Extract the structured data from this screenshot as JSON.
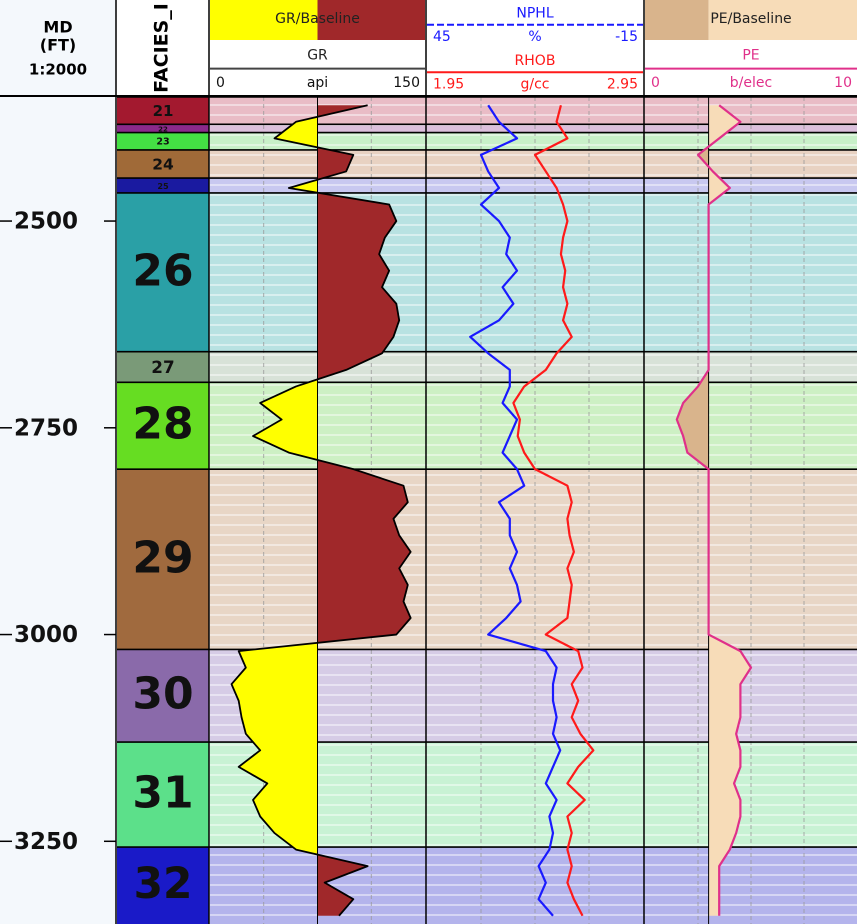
{
  "chart_data": {
    "type": "well_log",
    "depth_header": {
      "title": "MD",
      "unit": "(FT)",
      "scale": "1:2000"
    },
    "ylim": [
      2350,
      3350
    ],
    "yticks": [
      2500,
      2750,
      3000,
      3250
    ],
    "grid": true,
    "facies": {
      "title": "FACIES_I",
      "zones": [
        {
          "label": "21",
          "top": 2350,
          "base": 2383,
          "color": "#a3192f",
          "fill": "#e9bcc6"
        },
        {
          "label": "22",
          "top": 2383,
          "base": 2393,
          "color": "#8b2a8b",
          "fill": "#dcc0dc"
        },
        {
          "label": "23",
          "top": 2393,
          "base": 2414,
          "color": "#44e044",
          "fill": "#c8f0c8"
        },
        {
          "label": "24",
          "top": 2414,
          "base": 2448,
          "color": "#a06a38",
          "fill": "#e8d2c2"
        },
        {
          "label": "25",
          "top": 2448,
          "base": 2466,
          "color": "#1a1aa0",
          "fill": "#c8c8f0"
        },
        {
          "label": "26",
          "top": 2466,
          "base": 2658,
          "color": "#2aa0a6",
          "fill": "#b8e2e2"
        },
        {
          "label": "27",
          "top": 2658,
          "base": 2695,
          "color": "#7a9a78",
          "fill": "#d8e2d8"
        },
        {
          "label": "28",
          "top": 2695,
          "base": 2800,
          "color": "#66dd22",
          "fill": "#cdf0c4"
        },
        {
          "label": "29",
          "top": 2800,
          "base": 3018,
          "color": "#a06a3e",
          "fill": "#e8d6c6"
        },
        {
          "label": "30",
          "top": 3018,
          "base": 3130,
          "color": "#8a6aaa",
          "fill": "#d6cce6"
        },
        {
          "label": "31",
          "top": 3130,
          "base": 3257,
          "color": "#5ce08a",
          "fill": "#c8f2d4"
        },
        {
          "label": "32",
          "top": 3257,
          "base": 3350,
          "color": "#1a1ac8",
          "fill": "#b4b4ec"
        }
      ]
    },
    "x": [
      2360,
      2380,
      2400,
      2420,
      2440,
      2460,
      2480,
      2500,
      2520,
      2540,
      2560,
      2580,
      2600,
      2620,
      2640,
      2660,
      2680,
      2700,
      2720,
      2740,
      2760,
      2780,
      2800,
      2820,
      2840,
      2860,
      2880,
      2900,
      2920,
      2940,
      2960,
      2980,
      3000,
      3020,
      3040,
      3060,
      3080,
      3100,
      3120,
      3140,
      3160,
      3180,
      3200,
      3220,
      3240,
      3260,
      3280,
      3300,
      3320,
      3340
    ],
    "tracks": [
      {
        "title": "GR/Baseline",
        "baseline": 75,
        "fill_low": "#ffff00",
        "fill_high": "#a0282a",
        "curves": [
          {
            "name": "GR",
            "unit": "api",
            "xlim": [
              0,
              150
            ],
            "color": "#000000",
            "values": [
              110,
              60,
              45,
              100,
              95,
              55,
              125,
              130,
              122,
              118,
              125,
              120,
              130,
              132,
              128,
              120,
              95,
              60,
              35,
              50,
              30,
              55,
              100,
              135,
              138,
              128,
              132,
              140,
              132,
              138,
              135,
              140,
              130,
              20,
              25,
              15,
              20,
              22,
              25,
              35,
              20,
              40,
              30,
              35,
              45,
              60,
              110,
              80,
              100,
              90
            ]
          }
        ]
      },
      {
        "curves": [
          {
            "name": "NPHL",
            "unit": "%",
            "xlim": [
              45,
              -15
            ],
            "color": "#1a1aff",
            "dash": true,
            "values": [
              28,
              25,
              20,
              30,
              28,
              25,
              30,
              25,
              22,
              23,
              20,
              24,
              21,
              25,
              33,
              28,
              22,
              22,
              24,
              20,
              22,
              24,
              20,
              18,
              25,
              22,
              22,
              20,
              22,
              20,
              19,
              23,
              28,
              12,
              9,
              10,
              10,
              9,
              10,
              8,
              10,
              12,
              9,
              11,
              10,
              11,
              14,
              12,
              14,
              10
            ]
          },
          {
            "name": "RHOB",
            "unit": "g/cc",
            "xlim": [
              1.95,
              2.95
            ],
            "color": "#ff1a1a",
            "values": [
              2.57,
              2.55,
              2.6,
              2.45,
              2.5,
              2.55,
              2.58,
              2.6,
              2.58,
              2.57,
              2.59,
              2.58,
              2.6,
              2.58,
              2.62,
              2.55,
              2.5,
              2.4,
              2.35,
              2.38,
              2.37,
              2.4,
              2.45,
              2.6,
              2.62,
              2.6,
              2.61,
              2.63,
              2.6,
              2.62,
              2.61,
              2.6,
              2.5,
              2.65,
              2.67,
              2.62,
              2.65,
              2.62,
              2.66,
              2.72,
              2.65,
              2.6,
              2.68,
              2.6,
              2.62,
              2.6,
              2.62,
              2.6,
              2.63,
              2.67
            ]
          }
        ]
      },
      {
        "title": "PE/Baseline",
        "baseline": 3,
        "fill_low": "#d9b48c",
        "fill_high": "#f7dcb8",
        "curves": [
          {
            "name": "PE",
            "unit": "b/elec",
            "xlim": [
              0,
              10
            ],
            "color": "#e0308a",
            "values": [
              3.5,
              4.5,
              3.5,
              2.5,
              3.2,
              4,
              3,
              3,
              3,
              3,
              3,
              3,
              3,
              3,
              3,
              3,
              3,
              2.5,
              1.8,
              1.5,
              1.8,
              2,
              3,
              3,
              3,
              3,
              3,
              3,
              3,
              3,
              3,
              3,
              3,
              4.5,
              5,
              4.5,
              4.5,
              4.5,
              4.3,
              4.5,
              4.5,
              4.2,
              4.5,
              4.5,
              4.3,
              4,
              3.5,
              3.5,
              3.5,
              3.5
            ]
          }
        ]
      }
    ]
  }
}
